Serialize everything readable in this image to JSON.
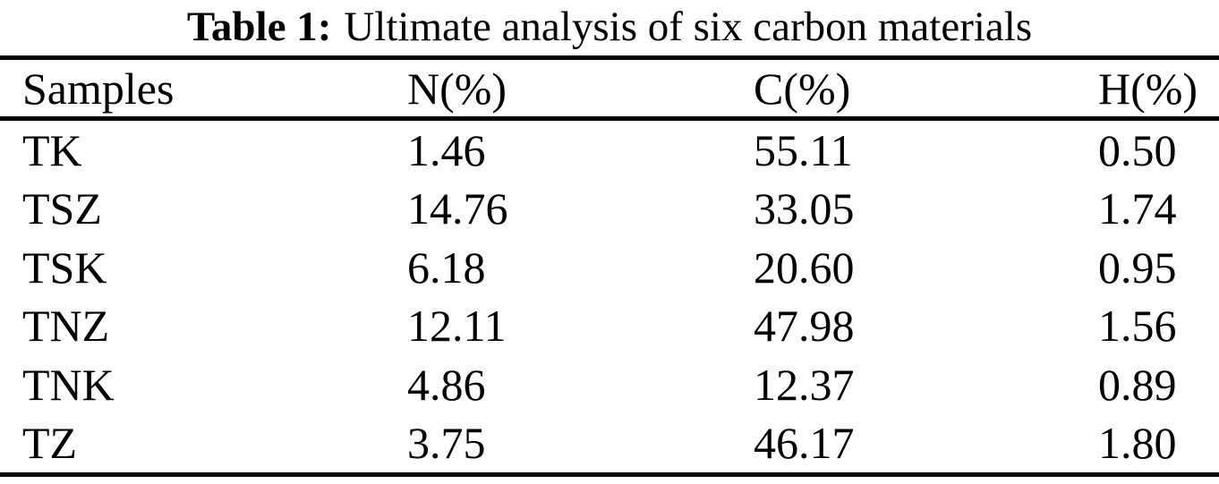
{
  "page": {
    "background": "#ffffff",
    "text_color": "#000000"
  },
  "caption": {
    "label": "Table 1:",
    "text": "Ultimate analysis of six carbon materials"
  },
  "table": {
    "columns": [
      {
        "label": "Samples"
      },
      {
        "label": "N(%)"
      },
      {
        "label": "C(%)"
      },
      {
        "label": "H(%)"
      }
    ],
    "rows": [
      {
        "sample": "TK",
        "n": "1.46",
        "c": "55.11",
        "h": "0.50"
      },
      {
        "sample": "TSZ",
        "n": "14.76",
        "c": "33.05",
        "h": "1.74"
      },
      {
        "sample": "TSK",
        "n": "6.18",
        "c": "20.60",
        "h": "0.95"
      },
      {
        "sample": "TNZ",
        "n": "12.11",
        "c": "47.98",
        "h": "1.56"
      },
      {
        "sample": "TNK",
        "n": "4.86",
        "c": "12.37",
        "h": "0.89"
      },
      {
        "sample": "TZ",
        "n": "3.75",
        "c": "46.17",
        "h": "1.80"
      }
    ]
  }
}
